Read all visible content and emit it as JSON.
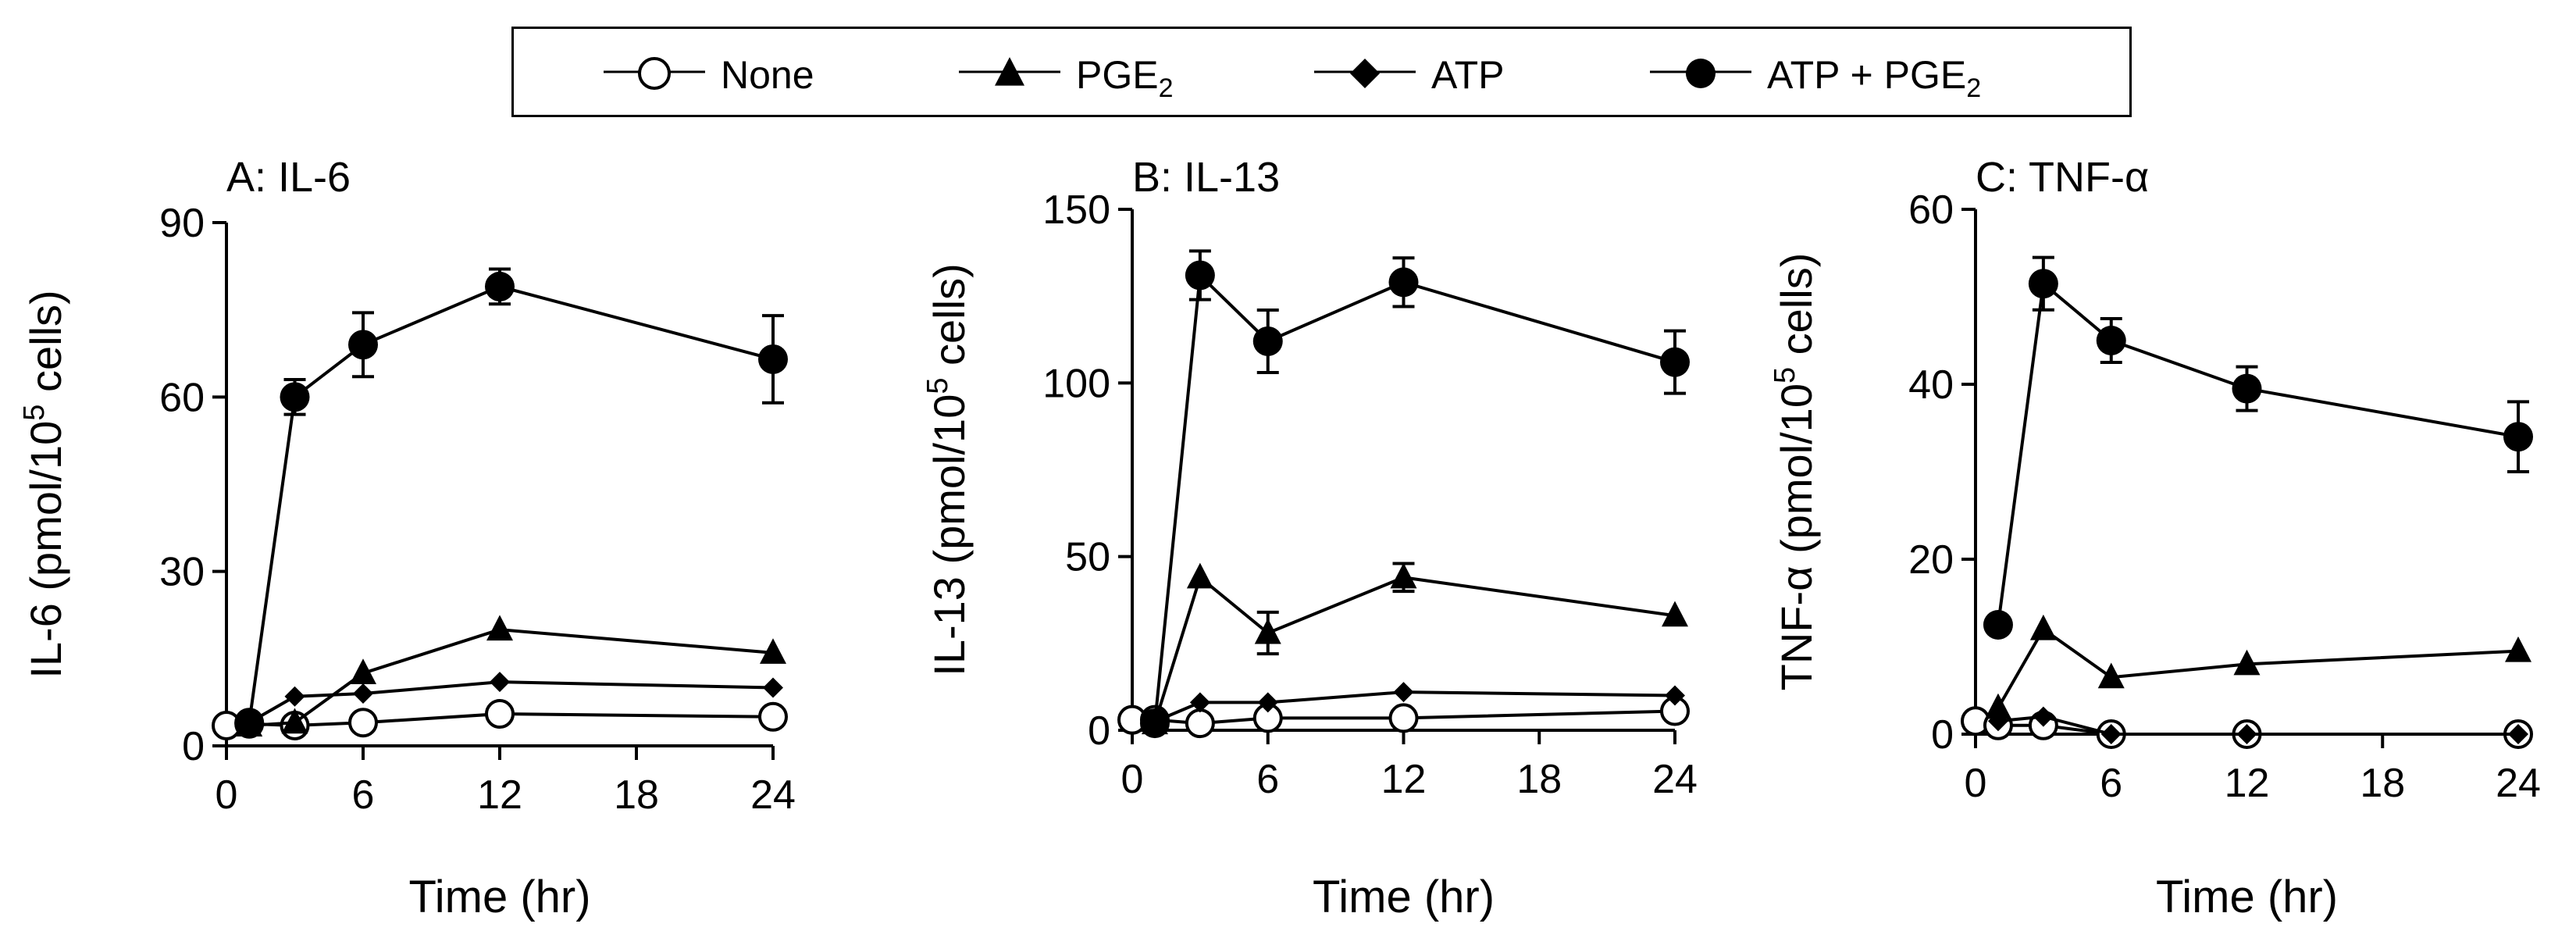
{
  "legend": {
    "items": [
      {
        "key": "none",
        "label": "None",
        "sub": "",
        "after": ""
      },
      {
        "key": "pge2",
        "label": "PGE",
        "sub": "2",
        "after": ""
      },
      {
        "key": "atp",
        "label": "ATP",
        "sub": "",
        "after": ""
      },
      {
        "key": "atp_pge2",
        "label": "ATP + PGE",
        "sub": "2",
        "after": ""
      }
    ]
  },
  "chart_data": [
    {
      "type": "line",
      "title": "A: IL-6",
      "xlabel": "Time (hr)",
      "ylabel_prefix": "IL-6 (pmol/10",
      "ylabel_sup": "5",
      "ylabel_suffix": " cells)",
      "xlim": [
        0,
        24
      ],
      "ylim": [
        0,
        90
      ],
      "xticks": [
        0,
        6,
        12,
        18,
        24
      ],
      "yticks": [
        0,
        30,
        60,
        90
      ],
      "series": [
        {
          "name": "None",
          "marker": "open-circle",
          "x": [
            0,
            1,
            3,
            6,
            12,
            24
          ],
          "y": [
            3.5,
            3.8,
            3.5,
            4,
            5.5,
            5
          ],
          "err": [
            0,
            0,
            0,
            0,
            0,
            0
          ]
        },
        {
          "name": "PGE2",
          "marker": "triangle",
          "x": [
            1,
            3,
            6,
            12,
            24
          ],
          "y": [
            3.5,
            4,
            12.5,
            20,
            16
          ],
          "err": [
            0,
            0,
            0,
            0,
            0
          ]
        },
        {
          "name": "ATP",
          "marker": "diamond",
          "x": [
            1,
            3,
            6,
            12,
            24
          ],
          "y": [
            4,
            8.5,
            9,
            11,
            10
          ],
          "err": [
            0,
            0,
            0,
            0,
            0
          ]
        },
        {
          "name": "ATP + PGE2",
          "marker": "filled-circle",
          "x": [
            1,
            3,
            6,
            12,
            24
          ],
          "y": [
            4,
            60,
            69,
            79,
            66.5
          ],
          "err": [
            0,
            3,
            5.5,
            3,
            7.5
          ]
        }
      ]
    },
    {
      "type": "line",
      "title": "B: IL-13",
      "xlabel": "Time (hr)",
      "ylabel_prefix": "IL-13 (pmol/10",
      "ylabel_sup": "5",
      "ylabel_suffix": " cells)",
      "xlim": [
        0,
        24
      ],
      "ylim": [
        0,
        150
      ],
      "xticks": [
        0,
        6,
        12,
        18,
        24
      ],
      "yticks": [
        0,
        50,
        100,
        150
      ],
      "series": [
        {
          "name": "None",
          "marker": "open-circle",
          "x": [
            0,
            1,
            3,
            6,
            12,
            24
          ],
          "y": [
            3,
            3,
            2,
            3.5,
            3.5,
            5.5
          ],
          "err": [
            0,
            0,
            0,
            0,
            0,
            0
          ]
        },
        {
          "name": "PGE2",
          "marker": "triangle",
          "x": [
            1,
            3,
            6,
            12,
            24
          ],
          "y": [
            2,
            44,
            28,
            44,
            33
          ],
          "err": [
            0,
            0,
            6,
            4,
            0
          ]
        },
        {
          "name": "ATP",
          "marker": "diamond",
          "x": [
            1,
            3,
            6,
            12,
            24
          ],
          "y": [
            2.5,
            8,
            8,
            11,
            10
          ],
          "err": [
            0,
            0,
            0,
            0,
            0
          ]
        },
        {
          "name": "ATP + PGE2",
          "marker": "filled-circle",
          "x": [
            1,
            3,
            6,
            12,
            24
          ],
          "y": [
            2,
            131,
            112,
            129,
            106
          ],
          "err": [
            0,
            7,
            9,
            7,
            9
          ]
        }
      ]
    },
    {
      "type": "line",
      "title": "C: TNF-α",
      "xlabel": "Time (hr)",
      "ylabel_prefix": "TNF-α (pmol/10",
      "ylabel_sup": "5",
      "ylabel_suffix": " cells)",
      "xlim": [
        0,
        24
      ],
      "ylim": [
        0,
        60
      ],
      "xticks": [
        0,
        6,
        12,
        18,
        24
      ],
      "yticks": [
        0,
        20,
        40,
        60
      ],
      "series": [
        {
          "name": "None",
          "marker": "open-circle",
          "x": [
            0,
            1,
            3,
            6,
            12,
            24
          ],
          "y": [
            1.5,
            1,
            1,
            0,
            0,
            0
          ],
          "err": [
            0,
            0,
            0,
            0,
            0,
            0
          ]
        },
        {
          "name": "PGE2",
          "marker": "triangle",
          "x": [
            1,
            3,
            6,
            12,
            24
          ],
          "y": [
            3,
            12,
            6.5,
            8,
            9.5
          ],
          "err": [
            0,
            0,
            0,
            0,
            0
          ]
        },
        {
          "name": "ATP",
          "marker": "diamond",
          "x": [
            1,
            3,
            6,
            12,
            24
          ],
          "y": [
            1.5,
            2,
            0,
            0,
            0
          ],
          "err": [
            0,
            0,
            0,
            0,
            0
          ]
        },
        {
          "name": "ATP + PGE2",
          "marker": "filled-circle",
          "x": [
            1,
            3,
            6,
            12,
            24
          ],
          "y": [
            12.5,
            51.5,
            45,
            39.5,
            34
          ],
          "err": [
            0,
            3,
            2.5,
            2.5,
            4
          ]
        }
      ]
    }
  ]
}
